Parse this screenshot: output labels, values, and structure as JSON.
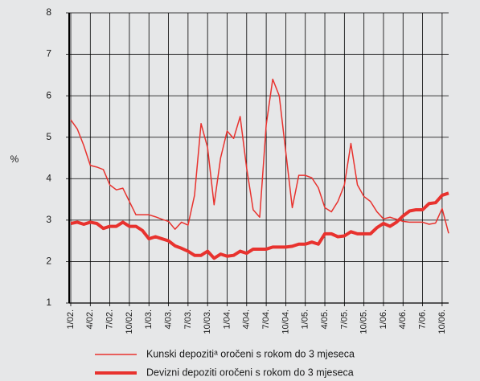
{
  "chart_data": {
    "type": "line",
    "y_label": "%",
    "categories": [
      "1/02.",
      null,
      null,
      "4/02.",
      null,
      null,
      "7/02.",
      null,
      null,
      "10/02.",
      null,
      null,
      "1/03.",
      null,
      null,
      "4/03.",
      null,
      null,
      "7/03.",
      null,
      null,
      "10/03.",
      null,
      null,
      "1/04.",
      null,
      null,
      "4/04.",
      null,
      null,
      "7/04.",
      null,
      null,
      "10/04.",
      null,
      null,
      "1/05.",
      null,
      null,
      "4/05.",
      null,
      null,
      "7/05.",
      null,
      null,
      "10/05.",
      null,
      null,
      "1/06.",
      null,
      null,
      "4/06.",
      null,
      null,
      "7/06.",
      null,
      null,
      "10/06.",
      null
    ],
    "series": [
      {
        "name": "Kunski depozitiᵃ oročeni s rokom do 3 mjeseca",
        "color": "#e8322e",
        "values": [
          5.42,
          5.2,
          4.8,
          4.32,
          4.28,
          4.22,
          3.85,
          3.73,
          3.77,
          3.45,
          3.13,
          3.13,
          3.13,
          3.08,
          3.02,
          2.97,
          2.78,
          2.95,
          2.88,
          3.6,
          5.33,
          4.75,
          3.37,
          4.5,
          5.15,
          4.97,
          5.5,
          4.25,
          3.25,
          3.07,
          5.3,
          6.4,
          6.0,
          4.65,
          3.3,
          4.08,
          4.08,
          4.02,
          3.78,
          3.3,
          3.2,
          3.45,
          3.85,
          4.85,
          3.85,
          3.57,
          3.45,
          3.2,
          3.03,
          3.07,
          3.02,
          2.97,
          2.95,
          2.95,
          2.95,
          2.9,
          2.93,
          3.28,
          2.68
        ]
      },
      {
        "name": "Devizni depoziti oročeni s rokom do 3 mjeseca",
        "color": "#e8322e",
        "values": [
          2.92,
          2.95,
          2.9,
          2.95,
          2.92,
          2.8,
          2.85,
          2.85,
          2.95,
          2.85,
          2.85,
          2.75,
          2.55,
          2.6,
          2.55,
          2.5,
          2.38,
          2.32,
          2.25,
          2.15,
          2.15,
          2.25,
          2.08,
          2.18,
          2.13,
          2.15,
          2.25,
          2.2,
          2.3,
          2.3,
          2.3,
          2.35,
          2.35,
          2.35,
          2.37,
          2.42,
          2.42,
          2.47,
          2.42,
          2.67,
          2.67,
          2.6,
          2.62,
          2.72,
          2.67,
          2.67,
          2.67,
          2.82,
          2.92,
          2.85,
          2.95,
          3.1,
          3.22,
          3.25,
          3.25,
          3.4,
          3.42,
          3.6,
          3.65
        ]
      }
    ],
    "line_widths": [
      1.5,
      4
    ],
    "ylim": [
      1,
      8
    ],
    "yticks": [
      1,
      2,
      3,
      4,
      5,
      6,
      7,
      8
    ],
    "grid": true
  }
}
